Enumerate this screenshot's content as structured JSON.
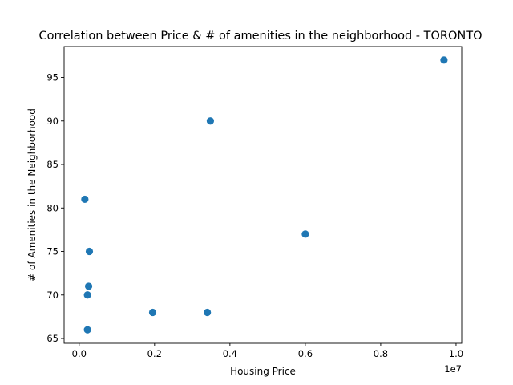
{
  "chart_data": {
    "type": "scatter",
    "title": "Correlation between Price & # of amenities in the neighborhood - TORONTO",
    "xlabel": "Housing Price",
    "ylabel": "# of Amenities in the Neighborhood",
    "x_offset_label": "1e7",
    "xlim": [
      -400000,
      10150000
    ],
    "ylim": [
      64.45,
      98.55
    ],
    "x_ticks": [
      {
        "value": 0,
        "label": "0.0"
      },
      {
        "value": 2000000,
        "label": "0.2"
      },
      {
        "value": 4000000,
        "label": "0.4"
      },
      {
        "value": 6000000,
        "label": "0.6"
      },
      {
        "value": 8000000,
        "label": "0.8"
      },
      {
        "value": 10000000,
        "label": "1.0"
      }
    ],
    "y_ticks": [
      {
        "value": 65,
        "label": "65"
      },
      {
        "value": 70,
        "label": "70"
      },
      {
        "value": 75,
        "label": "75"
      },
      {
        "value": 80,
        "label": "80"
      },
      {
        "value": 85,
        "label": "85"
      },
      {
        "value": 90,
        "label": "90"
      },
      {
        "value": 95,
        "label": "95"
      }
    ],
    "grid": false,
    "color": "#1f77b4",
    "points": [
      {
        "x": 9680000,
        "y": 97
      },
      {
        "x": 3480000,
        "y": 90
      },
      {
        "x": 150000,
        "y": 81
      },
      {
        "x": 6000000,
        "y": 77
      },
      {
        "x": 270000,
        "y": 75
      },
      {
        "x": 250000,
        "y": 71
      },
      {
        "x": 220000,
        "y": 70
      },
      {
        "x": 1950000,
        "y": 68
      },
      {
        "x": 3400000,
        "y": 68
      },
      {
        "x": 220000,
        "y": 66
      }
    ]
  }
}
